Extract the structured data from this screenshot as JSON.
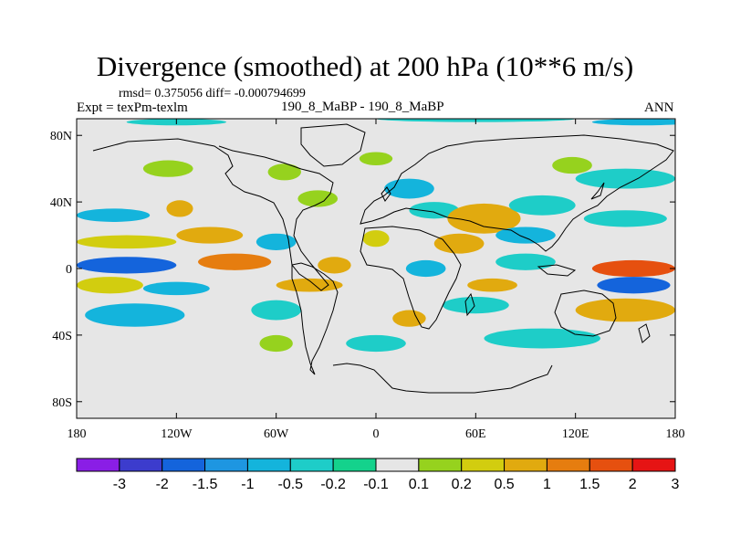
{
  "chart_data": {
    "type": "heatmap",
    "title": "Divergence (smoothed) at 200 hPa (10**6 m/s)",
    "stats_text": "rmsd= 0.375056 diff= -0.000794699",
    "experiment_text": "Expt = texPm-texlm",
    "case_text": "190_8_MaBP - 190_8_MaBP",
    "season": "ANN",
    "x_range": [
      -180,
      180
    ],
    "y_range": [
      -90,
      90
    ],
    "x_ticks": [
      {
        "value": -180,
        "label": "180"
      },
      {
        "value": -120,
        "label": "120W"
      },
      {
        "value": -60,
        "label": "60W"
      },
      {
        "value": 0,
        "label": "0"
      },
      {
        "value": 60,
        "label": "60E"
      },
      {
        "value": 120,
        "label": "120E"
      },
      {
        "value": 180,
        "label": "180"
      }
    ],
    "y_ticks": [
      {
        "value": 80,
        "label": "80N"
      },
      {
        "value": 40,
        "label": "40N"
      },
      {
        "value": 0,
        "label": "0"
      },
      {
        "value": -40,
        "label": "40S"
      },
      {
        "value": -80,
        "label": "80S"
      }
    ],
    "colorbar": {
      "boundaries": [
        "-3",
        "-2",
        "-1.5",
        "-1",
        "-0.5",
        "-0.2",
        "-0.1",
        "0.1",
        "0.2",
        "0.5",
        "1",
        "1.5",
        "2",
        "3"
      ],
      "colors": [
        "#8a1ee6",
        "#3c3ccd",
        "#1464dc",
        "#1e96e1",
        "#14b4dc",
        "#1ecdc8",
        "#14d28c",
        "#e6e6e6",
        "#96d21e",
        "#d2cd0f",
        "#e1aa0f",
        "#e67d0f",
        "#e6500f",
        "#e61414"
      ]
    },
    "field_features": [
      {
        "lon": 160,
        "lat": 88,
        "rx": 30,
        "ry": 2,
        "level": 4
      },
      {
        "lon": -120,
        "lat": 88,
        "rx": 30,
        "ry": 2,
        "level": 5
      },
      {
        "lon": 60,
        "lat": 90,
        "rx": 60,
        "ry": 2,
        "level": 5
      },
      {
        "lon": -125,
        "lat": 60,
        "rx": 15,
        "ry": 5,
        "level": 8
      },
      {
        "lon": -55,
        "lat": 58,
        "rx": 10,
        "ry": 5,
        "level": 8
      },
      {
        "lon": 0,
        "lat": 66,
        "rx": 10,
        "ry": 4,
        "level": 8
      },
      {
        "lon": 118,
        "lat": 62,
        "rx": 12,
        "ry": 5,
        "level": 8
      },
      {
        "lon": 150,
        "lat": 54,
        "rx": 30,
        "ry": 6,
        "level": 5
      },
      {
        "lon": -158,
        "lat": 32,
        "rx": 22,
        "ry": 4,
        "level": 4
      },
      {
        "lon": -118,
        "lat": 36,
        "rx": 8,
        "ry": 5,
        "level": 10
      },
      {
        "lon": -35,
        "lat": 42,
        "rx": 12,
        "ry": 5,
        "level": 8
      },
      {
        "lon": 20,
        "lat": 48,
        "rx": 15,
        "ry": 6,
        "level": 4
      },
      {
        "lon": 35,
        "lat": 35,
        "rx": 15,
        "ry": 5,
        "level": 5
      },
      {
        "lon": 65,
        "lat": 30,
        "rx": 22,
        "ry": 9,
        "level": 10
      },
      {
        "lon": 100,
        "lat": 38,
        "rx": 20,
        "ry": 6,
        "level": 5
      },
      {
        "lon": 150,
        "lat": 30,
        "rx": 25,
        "ry": 5,
        "level": 5
      },
      {
        "lon": -150,
        "lat": 16,
        "rx": 30,
        "ry": 4,
        "level": 9
      },
      {
        "lon": -100,
        "lat": 20,
        "rx": 20,
        "ry": 5,
        "level": 10
      },
      {
        "lon": -60,
        "lat": 16,
        "rx": 12,
        "ry": 5,
        "level": 4
      },
      {
        "lon": 0,
        "lat": 18,
        "rx": 8,
        "ry": 5,
        "level": 9
      },
      {
        "lon": 50,
        "lat": 15,
        "rx": 15,
        "ry": 6,
        "level": 10
      },
      {
        "lon": 90,
        "lat": 20,
        "rx": 18,
        "ry": 5,
        "level": 4
      },
      {
        "lon": -150,
        "lat": 2,
        "rx": 30,
        "ry": 5,
        "level": 2
      },
      {
        "lon": -85,
        "lat": 4,
        "rx": 22,
        "ry": 5,
        "level": 11
      },
      {
        "lon": -25,
        "lat": 2,
        "rx": 10,
        "ry": 5,
        "level": 10
      },
      {
        "lon": 30,
        "lat": 0,
        "rx": 12,
        "ry": 5,
        "level": 4
      },
      {
        "lon": 90,
        "lat": 4,
        "rx": 18,
        "ry": 5,
        "level": 5
      },
      {
        "lon": 155,
        "lat": 0,
        "rx": 25,
        "ry": 5,
        "level": 12
      },
      {
        "lon": -160,
        "lat": -10,
        "rx": 20,
        "ry": 5,
        "level": 9
      },
      {
        "lon": -120,
        "lat": -12,
        "rx": 20,
        "ry": 4,
        "level": 4
      },
      {
        "lon": -40,
        "lat": -10,
        "rx": 20,
        "ry": 4,
        "level": 10
      },
      {
        "lon": 70,
        "lat": -10,
        "rx": 15,
        "ry": 4,
        "level": 10
      },
      {
        "lon": 155,
        "lat": -10,
        "rx": 22,
        "ry": 5,
        "level": 2
      },
      {
        "lon": -145,
        "lat": -28,
        "rx": 30,
        "ry": 7,
        "level": 4
      },
      {
        "lon": -60,
        "lat": -25,
        "rx": 15,
        "ry": 6,
        "level": 5
      },
      {
        "lon": 20,
        "lat": -30,
        "rx": 10,
        "ry": 5,
        "level": 10
      },
      {
        "lon": 60,
        "lat": -22,
        "rx": 20,
        "ry": 5,
        "level": 5
      },
      {
        "lon": 150,
        "lat": -25,
        "rx": 30,
        "ry": 7,
        "level": 10
      },
      {
        "lon": -60,
        "lat": -45,
        "rx": 10,
        "ry": 5,
        "level": 8
      },
      {
        "lon": 0,
        "lat": -45,
        "rx": 18,
        "ry": 5,
        "level": 5
      },
      {
        "lon": 100,
        "lat": -42,
        "rx": 35,
        "ry": 6,
        "level": 5
      }
    ]
  }
}
